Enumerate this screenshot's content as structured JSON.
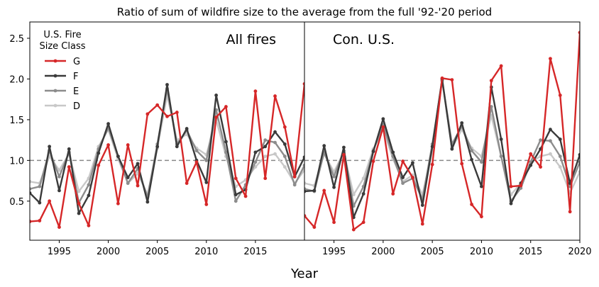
{
  "chart_data": {
    "type": "line",
    "title": "Ratio of sum of wildfire size to the average from the full '92-'20 period",
    "xlabel": "Year",
    "ylabel": "",
    "reference_line": 1.0,
    "ylim": [
      0.02,
      2.7
    ],
    "yticks": [
      "0.5",
      "1.0",
      "1.5",
      "2.0",
      "2.5"
    ],
    "legend": {
      "title_line1": "U.S. Fire",
      "title_line2": "Size Class",
      "placement": "top-left",
      "entries": [
        {
          "name": "G",
          "color": "#d62728"
        },
        {
          "name": "F",
          "color": "#3a3a3a"
        },
        {
          "name": "E",
          "color": "#8c8c8c"
        },
        {
          "name": "D",
          "color": "#c8c8c8"
        }
      ]
    },
    "x": [
      1992,
      1993,
      1994,
      1995,
      1996,
      1997,
      1998,
      1999,
      2000,
      2001,
      2002,
      2003,
      2004,
      2005,
      2006,
      2007,
      2008,
      2009,
      2010,
      2011,
      2012,
      2013,
      2014,
      2015,
      2016,
      2017,
      2018,
      2019,
      2020
    ],
    "panels": [
      {
        "label": "All fires",
        "xlim": [
          1992,
          2020
        ],
        "xticks": [
          "1995",
          "2000",
          "2005",
          "2010",
          "2015"
        ],
        "series": [
          {
            "name": "D",
            "color": "#c8c8c8",
            "values": [
              0.74,
              0.72,
              1.05,
              0.88,
              1.08,
              0.62,
              0.78,
              1.17,
              1.38,
              1.02,
              0.72,
              0.84,
              0.58,
              1.15,
              1.8,
              1.25,
              1.32,
              1.15,
              1.07,
              1.5,
              1.05,
              0.68,
              0.76,
              0.92,
              1.05,
              1.08,
              0.92,
              0.72,
              0.88
            ]
          },
          {
            "name": "E",
            "color": "#8c8c8c",
            "values": [
              0.65,
              0.68,
              1.12,
              0.8,
              1.1,
              0.48,
              0.7,
              1.14,
              1.4,
              1.05,
              0.72,
              0.9,
              0.55,
              1.2,
              1.88,
              1.2,
              1.37,
              1.12,
              1.0,
              1.62,
              1.1,
              0.5,
              0.7,
              0.98,
              1.25,
              1.22,
              1.05,
              0.7,
              0.94
            ]
          },
          {
            "name": "F",
            "color": "#3a3a3a",
            "values": [
              0.6,
              0.48,
              1.17,
              0.63,
              1.14,
              0.35,
              0.57,
              1.09,
              1.45,
              1.05,
              0.79,
              0.96,
              0.49,
              1.17,
              1.93,
              1.17,
              1.39,
              1.0,
              0.73,
              1.8,
              1.23,
              0.58,
              0.64,
              1.1,
              1.17,
              1.35,
              1.2,
              0.8,
              1.04
            ]
          },
          {
            "name": "G",
            "color": "#d62728",
            "values": [
              0.25,
              0.26,
              0.5,
              0.18,
              0.92,
              0.47,
              0.2,
              0.94,
              1.19,
              0.47,
              1.19,
              0.69,
              1.57,
              1.68,
              1.54,
              1.59,
              0.72,
              0.98,
              0.46,
              1.53,
              1.66,
              0.78,
              0.56,
              1.85,
              0.78,
              1.79,
              1.41,
              0.8,
              1.94
            ]
          }
        ]
      },
      {
        "label": "Con. U.S.",
        "xlim": [
          1992,
          2020
        ],
        "xticks": [
          "1995",
          "2000",
          "2005",
          "2010",
          "2015",
          "2020"
        ],
        "series": [
          {
            "name": "D",
            "color": "#c8c8c8",
            "values": [
              0.72,
              0.69,
              1.08,
              0.86,
              1.1,
              0.58,
              0.78,
              1.14,
              1.38,
              1.02,
              0.74,
              0.82,
              0.58,
              1.12,
              1.98,
              1.15,
              1.38,
              1.15,
              1.05,
              1.55,
              1.05,
              0.58,
              0.72,
              0.98,
              1.05,
              1.08,
              0.92,
              0.6,
              0.86
            ]
          },
          {
            "name": "E",
            "color": "#8c8c8c",
            "values": [
              0.65,
              0.62,
              1.1,
              0.8,
              1.12,
              0.44,
              0.68,
              1.12,
              1.44,
              1.05,
              0.72,
              0.78,
              0.52,
              1.2,
              1.98,
              1.2,
              1.42,
              1.12,
              0.98,
              1.66,
              1.05,
              0.5,
              0.66,
              0.98,
              1.25,
              1.24,
              1.05,
              0.68,
              0.98
            ]
          },
          {
            "name": "F",
            "color": "#3a3a3a",
            "values": [
              0.62,
              0.63,
              1.18,
              0.67,
              1.16,
              0.3,
              0.59,
              1.11,
              1.51,
              1.1,
              0.79,
              0.97,
              0.45,
              1.17,
              2.0,
              1.14,
              1.46,
              1.01,
              0.68,
              1.9,
              1.26,
              0.47,
              0.72,
              0.94,
              1.14,
              1.38,
              1.26,
              0.72,
              1.07
            ]
          },
          {
            "name": "G",
            "color": "#d62728",
            "values": [
              0.32,
              0.18,
              0.63,
              0.24,
              1.07,
              0.15,
              0.24,
              0.99,
              1.41,
              0.59,
              0.99,
              0.79,
              0.22,
              0.95,
              2.01,
              1.99,
              0.96,
              0.46,
              0.31,
              1.98,
              2.16,
              0.68,
              0.69,
              1.08,
              0.92,
              2.25,
              1.8,
              0.37,
              2.57
            ]
          }
        ]
      }
    ]
  }
}
